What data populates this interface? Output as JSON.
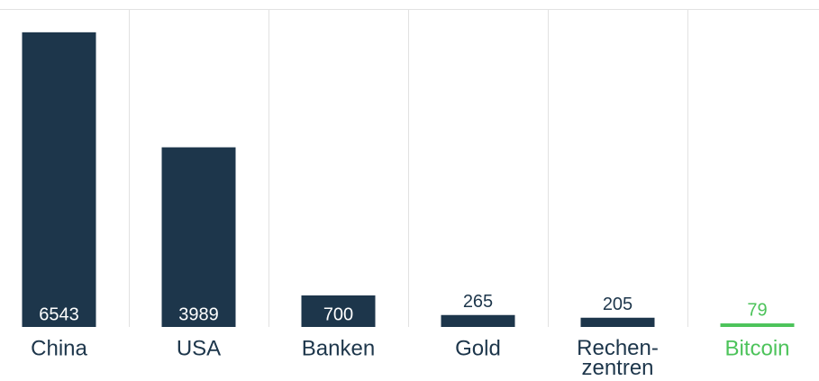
{
  "chart_data": {
    "type": "bar",
    "categories": [
      "China",
      "USA",
      "Banken",
      "Gold",
      "Rechen-\nzentren",
      "Bitcoin"
    ],
    "values": [
      6543,
      3989,
      700,
      265,
      205,
      79
    ],
    "colors": [
      "#1d364b",
      "#1d364b",
      "#1d364b",
      "#1d364b",
      "#1d364b",
      "#4cc35a"
    ],
    "ylim": [
      0,
      7000
    ]
  }
}
